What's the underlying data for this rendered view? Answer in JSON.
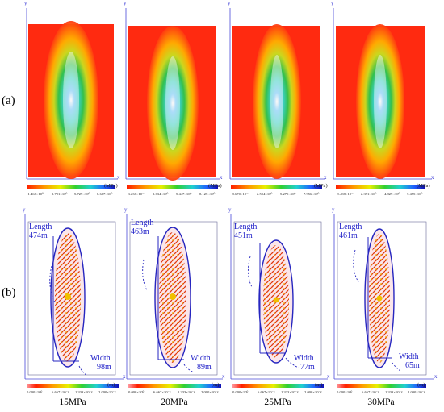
{
  "rows": {
    "a_label": "(a)",
    "b_label": "(b)"
  },
  "stress_panels": [
    {
      "unit": "(MPa)",
      "ticks": [
        "-1.468×10⁰",
        "2.791×10⁰",
        "5.729×10⁰",
        "8.667×10⁰"
      ]
    },
    {
      "unit": "(MPa)",
      "ticks": [
        "-3.238×10⁻²",
        "2.634×10⁰",
        "5.447×10⁰",
        "8.125×10⁰"
      ]
    },
    {
      "unit": "(MPa)",
      "ticks": [
        "-8.670×10⁻²",
        "2.594×10⁰",
        "5.275×10⁰",
        "7.956×10⁰"
      ]
    },
    {
      "unit": "(MPa)",
      "ticks": [
        "-9.488×10⁻²",
        "2.391×10⁰",
        "4.829×10⁰",
        "7.455×10⁰"
      ]
    }
  ],
  "fracture_panels": [
    {
      "length_label": "Length",
      "length_value": "474m",
      "width_label": "Width",
      "width_value": "98m",
      "unit": "(m)",
      "ticks": [
        "0.000×10⁰",
        "6.667×10⁻³",
        "1.333×10⁻²",
        "2.000×10⁻²"
      ],
      "pressure": "15MPa"
    },
    {
      "length_label": "Length",
      "length_value": "463m",
      "width_label": "Width",
      "width_value": "89m",
      "unit": "(m)",
      "ticks": [
        "0.000×10⁰",
        "6.667×10⁻³",
        "1.333×10⁻²",
        "2.000×10⁻²"
      ],
      "pressure": "20MPa"
    },
    {
      "length_label": "Length",
      "length_value": "451m",
      "width_label": "Width",
      "width_value": "77m",
      "unit": "(m)",
      "ticks": [
        "0.000×10⁰",
        "6.667×10⁻³",
        "1.333×10⁻²",
        "2.000×10⁻²"
      ],
      "pressure": "25MPa"
    },
    {
      "length_label": "Length",
      "length_value": "461m",
      "width_label": "Width",
      "width_value": "65m",
      "unit": "(m)",
      "ticks": [
        "0.000×10⁰",
        "6.667×10⁻³",
        "1.333×10⁻²",
        "2.000×10⁻²"
      ],
      "pressure": "30MPa"
    }
  ],
  "axes": {
    "y": "y",
    "x": "x"
  },
  "colors": {
    "annotation": "#1e1ec8",
    "field_background": "#ff2a10",
    "ellipse": "#2626c0"
  }
}
